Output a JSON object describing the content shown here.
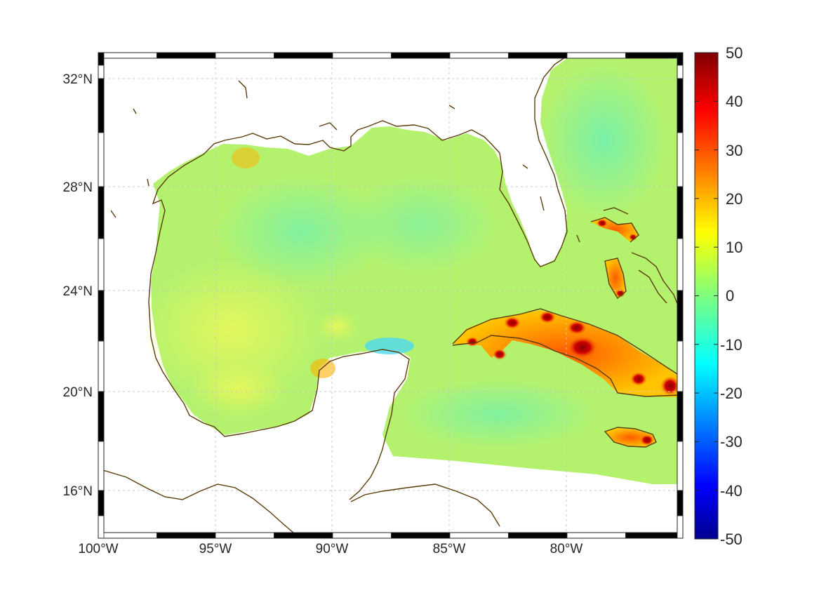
{
  "map": {
    "projection": "mercator-like",
    "extent": {
      "lon": [
        -100,
        -75.3
      ],
      "lat": [
        14.2,
        33.0
      ]
    },
    "grid": true,
    "lon_ticks": [
      {
        "value": -100,
        "label": "100°W"
      },
      {
        "value": -95,
        "label": "95°W"
      },
      {
        "value": -90,
        "label": "90°W"
      },
      {
        "value": -85,
        "label": "85°W"
      },
      {
        "value": -80,
        "label": "80°W"
      }
    ],
    "lat_ticks": [
      {
        "value": 32,
        "label": "32°N"
      },
      {
        "value": 28,
        "label": "28°N"
      },
      {
        "value": 24,
        "label": "24°N"
      },
      {
        "value": 20,
        "label": "20°N"
      },
      {
        "value": 16,
        "label": "16°N"
      }
    ],
    "coastline_color": "#5a3c0a",
    "frame_style": "alternating black/white border"
  },
  "colorbar": {
    "colormap": "jet",
    "min": -50,
    "max": 50,
    "tick_labels": [
      "50",
      "40",
      "30",
      "20",
      "10",
      "0",
      "-10",
      "-20",
      "-30",
      "-40",
      "-50"
    ],
    "placement": "right"
  },
  "field": {
    "background_value": 3,
    "hotspots": [
      {
        "region": "Cuba",
        "value": 30
      },
      {
        "region": "Jamaica",
        "value": 22
      },
      {
        "region": "Bahamas",
        "value": 25
      },
      {
        "region": "Yucatan north coast",
        "value": -10
      }
    ]
  }
}
